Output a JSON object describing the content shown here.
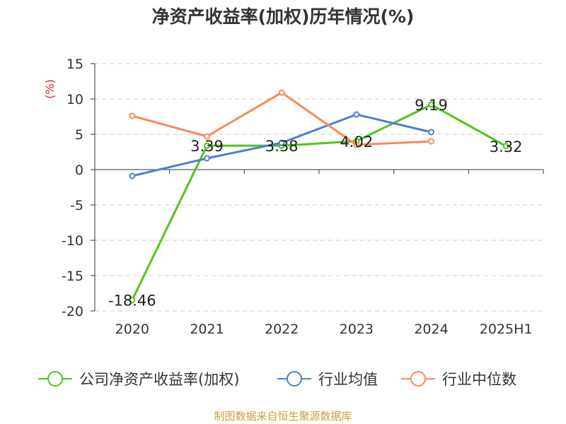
{
  "chart_data": {
    "type": "line",
    "title": "净资产收益率(加权)历年情况(%)",
    "ylabel": "(%)",
    "categories": [
      "2020",
      "2021",
      "2022",
      "2023",
      "2024",
      "2025H1"
    ],
    "yticks": [
      "15",
      "10",
      "5",
      "0",
      "-5",
      "-10",
      "-15",
      "-20"
    ],
    "ylim": [
      -20,
      15
    ],
    "grid": true,
    "legend_position": "bottom",
    "series": [
      {
        "name": "公司净资产收益率(加权)",
        "color": "#52c41a",
        "values": [
          -18.46,
          3.39,
          3.38,
          4.02,
          9.19,
          3.32
        ],
        "labels": [
          "-18.46",
          "3.39",
          "3.38",
          "4.02",
          "9.19",
          "3.32"
        ]
      },
      {
        "name": "行业均值",
        "color": "#4a7fd4",
        "values": [
          -0.9,
          1.6,
          3.8,
          7.8,
          5.3,
          null
        ]
      },
      {
        "name": "行业中位数",
        "color": "#f58c55",
        "values": [
          7.6,
          4.7,
          10.9,
          3.5,
          4.0,
          null
        ]
      }
    ]
  },
  "footer": {
    "source": "制图数据来自恒生聚源数据库"
  }
}
